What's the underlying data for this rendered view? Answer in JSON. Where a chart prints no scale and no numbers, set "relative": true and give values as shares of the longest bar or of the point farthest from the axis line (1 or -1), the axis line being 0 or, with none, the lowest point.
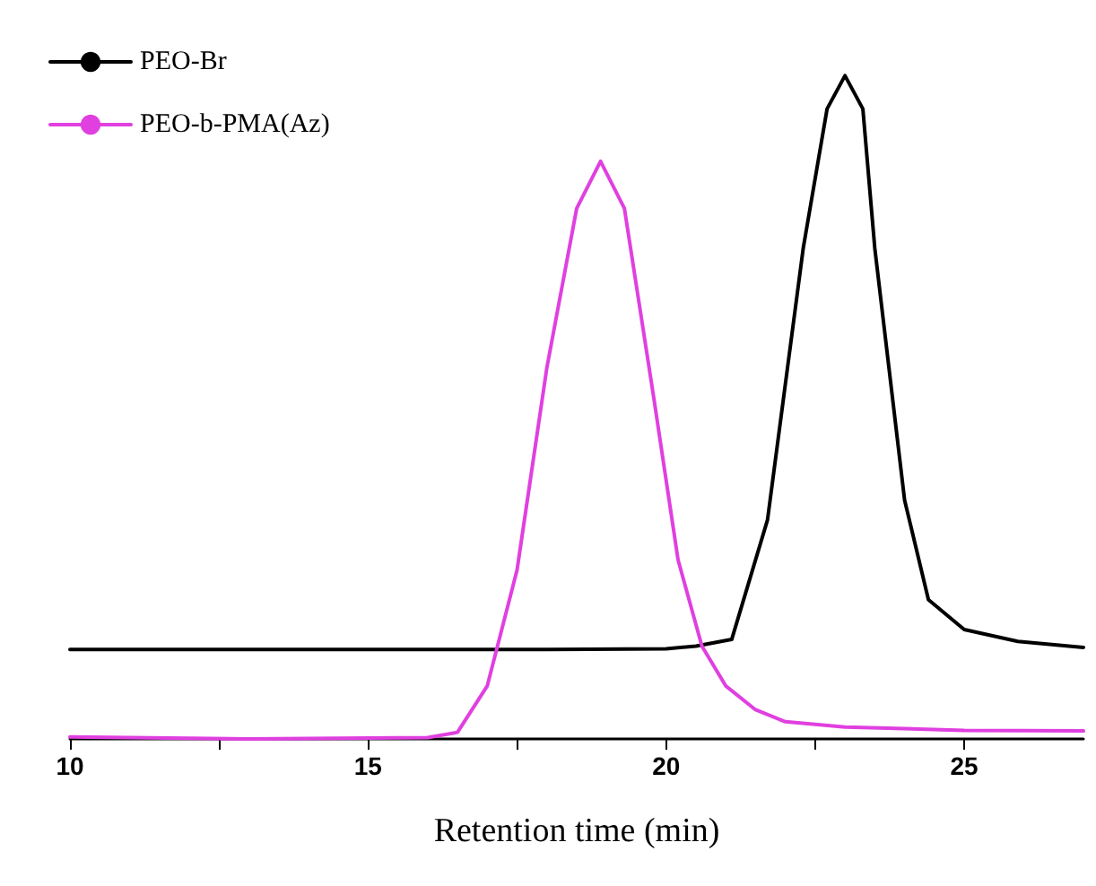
{
  "chart_data": {
    "type": "line",
    "relative": true,
    "xlabel": "Retention time (min)",
    "xlim": [
      10,
      27
    ],
    "xticks": [
      10,
      {
        "value": 12.5,
        "label": null
      },
      15,
      {
        "value": 17.5,
        "label": null
      },
      20,
      {
        "value": 22.5,
        "label": null
      },
      25
    ],
    "tick_labels": "x",
    "grid": false,
    "legend": "top left",
    "marker": "none",
    "line_style": "solid",
    "series": [
      {
        "name": "PEO-Br",
        "color": "#000000",
        "x": [
          10,
          14,
          18,
          20,
          20.5,
          21.1,
          21.7,
          22.3,
          22.7,
          23,
          23.3,
          23.5,
          24,
          24.4,
          25,
          25.9,
          27
        ],
        "values": [
          0.135,
          0.135,
          0.135,
          0.136,
          0.14,
          0.15,
          0.33,
          0.74,
          0.95,
          1,
          0.95,
          0.74,
          0.36,
          0.21,
          0.165,
          0.147,
          0.138
        ]
      },
      {
        "name": "PEO-b-PMA(Az)",
        "color": "#e040e0",
        "x": [
          10,
          13,
          16,
          16.5,
          17,
          17.5,
          18,
          18.5,
          18.9,
          19.3,
          19.8,
          20.2,
          20.6,
          21,
          21.5,
          22,
          23,
          25,
          27
        ],
        "values": [
          0.003,
          0,
          0.002,
          0.01,
          0.08,
          0.255,
          0.56,
          0.8,
          0.871,
          0.8,
          0.51,
          0.27,
          0.14,
          0.08,
          0.044,
          0.026,
          0.018,
          0.013,
          0.012
        ]
      }
    ]
  }
}
